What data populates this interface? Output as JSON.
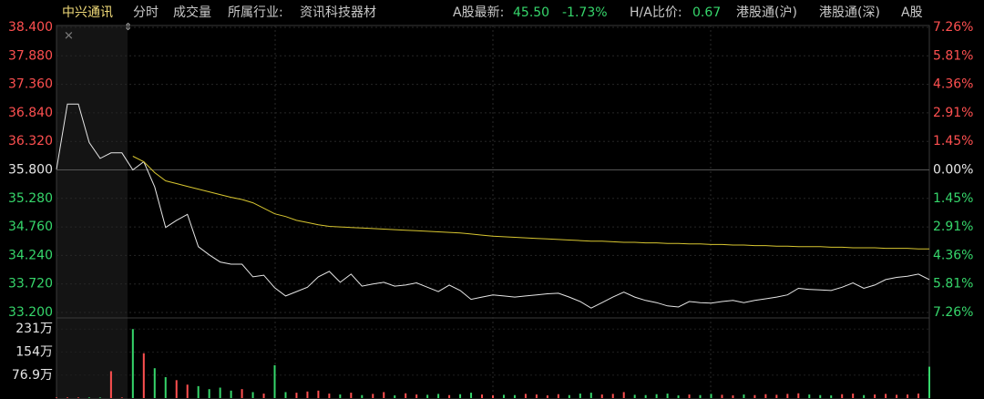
{
  "header": {
    "stock": "中兴通讯",
    "tabs": [
      "分时",
      "成交量"
    ],
    "industry_label": "所属行业:",
    "industry": "资讯科技器材",
    "a_label": "A股最新:",
    "a_price": "45.50",
    "a_change": "-1.73%",
    "ha_label": "H/A比价:",
    "ha_value": "0.67",
    "links": [
      "港股通(沪)",
      "港股通(深)",
      "A股"
    ]
  },
  "chart_data": [
    {
      "type": "line",
      "ylim": [
        33.2,
        38.4
      ],
      "yticks": [
        {
          "value": 38.4,
          "label": "38.400"
        },
        {
          "value": 37.88,
          "label": "37.880"
        },
        {
          "value": 37.36,
          "label": "37.360"
        },
        {
          "value": 36.84,
          "label": "36.840"
        },
        {
          "value": 36.32,
          "label": "36.320"
        },
        {
          "value": 35.8,
          "label": "35.800"
        },
        {
          "value": 35.28,
          "label": "35.280"
        },
        {
          "value": 34.76,
          "label": "34.760"
        },
        {
          "value": 34.24,
          "label": "34.240"
        },
        {
          "value": 33.72,
          "label": "33.720"
        },
        {
          "value": 33.2,
          "label": "33.200"
        }
      ],
      "y2lim": [
        -7.26,
        7.26
      ],
      "y2ticks": [
        {
          "value": 7.26,
          "label": "7.26%"
        },
        {
          "value": 5.81,
          "label": "5.81%"
        },
        {
          "value": 4.36,
          "label": "4.36%"
        },
        {
          "value": 2.91,
          "label": "2.91%"
        },
        {
          "value": 1.45,
          "label": "1.45%"
        },
        {
          "value": 0,
          "label": "0.00%"
        },
        {
          "value": -1.45,
          "label": "1.45%"
        },
        {
          "value": -2.91,
          "label": "2.91%"
        },
        {
          "value": -4.36,
          "label": "4.36%"
        },
        {
          "value": -5.81,
          "label": "5.81%"
        },
        {
          "value": -7.26,
          "label": "7.26%"
        }
      ],
      "grid": true,
      "up_color": "#ff5050",
      "down_color": "#36d66b",
      "series": [
        {
          "color": "#e6e6e6",
          "values": [
            35.81,
            37.0,
            37.0,
            36.3,
            36.01,
            36.11,
            36.11,
            35.8,
            35.95,
            35.49,
            34.75,
            34.88,
            34.99,
            34.4,
            34.25,
            34.12,
            34.08,
            34.08,
            33.85,
            33.88,
            33.65,
            33.5,
            33.58,
            33.66,
            33.85,
            33.95,
            33.75,
            33.9,
            33.68,
            33.72,
            33.75,
            33.68,
            33.7,
            33.74,
            33.66,
            33.58,
            33.7,
            33.6,
            33.44,
            33.48,
            33.52,
            33.5,
            33.48,
            33.5,
            33.52,
            33.54,
            33.55,
            33.48,
            33.4,
            33.28,
            33.38,
            33.48,
            33.57,
            33.48,
            33.42,
            33.38,
            33.32,
            33.3,
            33.4,
            33.38,
            33.37,
            33.4,
            33.42,
            33.38,
            33.42,
            33.45,
            33.48,
            33.52,
            33.64,
            33.62,
            33.61,
            33.6,
            33.66,
            33.74,
            33.64,
            33.7,
            33.8,
            33.84,
            33.86,
            33.9,
            33.8
          ]
        },
        {
          "color": "#d8c630",
          "values": [
            null,
            null,
            null,
            null,
            null,
            null,
            null,
            36.05,
            35.95,
            35.75,
            35.6,
            35.55,
            35.5,
            35.45,
            35.4,
            35.35,
            35.3,
            35.26,
            35.2,
            35.1,
            35.0,
            34.95,
            34.88,
            34.84,
            34.8,
            34.77,
            34.76,
            34.75,
            34.74,
            34.73,
            34.72,
            34.71,
            34.7,
            34.69,
            34.68,
            34.67,
            34.66,
            34.65,
            34.63,
            34.61,
            34.59,
            34.58,
            34.57,
            34.56,
            34.55,
            34.54,
            34.53,
            34.52,
            34.51,
            34.5,
            34.5,
            34.49,
            34.48,
            34.48,
            34.47,
            34.47,
            34.46,
            34.46,
            34.45,
            34.45,
            34.44,
            34.44,
            34.43,
            34.43,
            34.42,
            34.42,
            34.41,
            34.41,
            34.4,
            34.4,
            34.4,
            34.39,
            34.39,
            34.38,
            34.38,
            34.38,
            34.37,
            34.37,
            34.37,
            34.36,
            34.36
          ]
        }
      ]
    },
    {
      "type": "bar",
      "ylim": [
        0,
        250
      ],
      "yticks": [
        {
          "value": 231,
          "label": "231万"
        },
        {
          "value": 154,
          "label": "154万"
        },
        {
          "value": 76.9,
          "label": "76.9万"
        }
      ],
      "up_color": "#ff5050",
      "down_color": "#36d66b",
      "values": [
        2,
        2,
        2,
        2,
        2,
        90,
        2,
        231,
        150,
        100,
        70,
        60,
        45,
        40,
        30,
        35,
        25,
        30,
        20,
        15,
        110,
        20,
        18,
        22,
        25,
        15,
        12,
        18,
        10,
        14,
        20,
        9,
        16,
        12,
        11,
        14,
        10,
        13,
        18,
        12,
        9,
        11,
        10,
        14,
        12,
        9,
        13,
        10,
        15,
        18,
        12,
        14,
        20,
        11,
        10,
        13,
        15,
        9,
        12,
        10,
        14,
        11,
        9,
        12,
        10,
        13,
        11,
        14,
        16,
        12,
        10,
        9,
        13,
        15,
        10,
        12,
        14,
        11,
        12,
        15,
        105
      ]
    }
  ]
}
